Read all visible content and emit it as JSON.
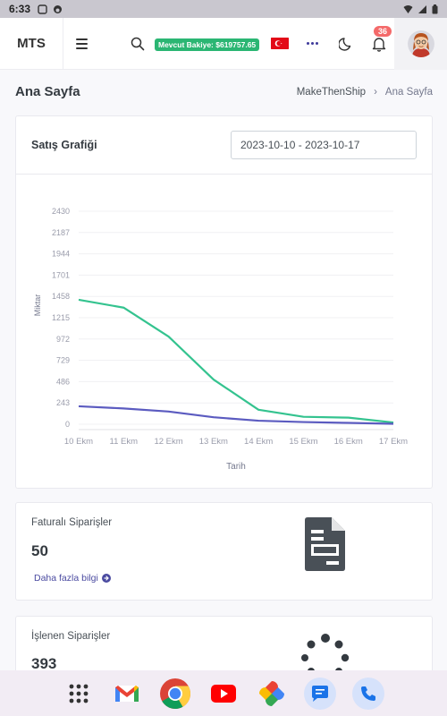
{
  "status_bar": {
    "time": "6:33"
  },
  "header": {
    "brand": "MTS",
    "balance": "Mevcut Bakiye: $619757.65",
    "notification_count": "36"
  },
  "page": {
    "title": "Ana Sayfa",
    "breadcrumb": [
      "MakeThenShip",
      "Ana Sayfa"
    ]
  },
  "sales_chart": {
    "title": "Satış Grafiği",
    "date_range": "2023-10-10 - 2023-10-17"
  },
  "chart_data": {
    "type": "line",
    "xlabel": "Tarih",
    "ylabel": "Miktar",
    "x": [
      "10 Ekm",
      "11 Ekm",
      "12 Ekm",
      "13 Ekm",
      "14 Ekm",
      "15 Ekm",
      "16 Ekm",
      "17 Ekm"
    ],
    "yticks": [
      0,
      243,
      486,
      729,
      972,
      1215,
      1458,
      1701,
      1944,
      2187,
      2430
    ],
    "ylim": [
      0,
      2430
    ],
    "grid": true,
    "series": [
      {
        "color": "#34c38f",
        "values": [
          1420,
          1330,
          1000,
          510,
          165,
          85,
          75,
          20
        ]
      },
      {
        "color": "#5b5bc0",
        "values": [
          205,
          180,
          145,
          80,
          40,
          25,
          15,
          5
        ]
      }
    ]
  },
  "cards": [
    {
      "label": "Faturalı Siparişler",
      "value": "50",
      "link": "Daha fazla bilgi"
    },
    {
      "label": "İşlenen Siparişler",
      "value": "393"
    }
  ],
  "colors": {
    "accent": "#3e3a9b",
    "success": "#2bb673",
    "danger": "#f46a6a"
  }
}
